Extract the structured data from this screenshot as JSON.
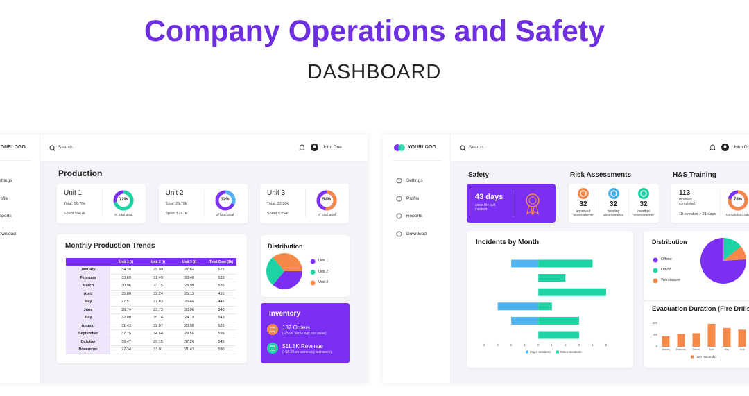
{
  "header": {
    "title": "Company Operations and Safety",
    "subtitle": "DASHBOARD"
  },
  "operations": {
    "logo": "YOURLOGO",
    "menu": [
      "Settings",
      "Profile",
      "Reports",
      "Download"
    ],
    "search": "Search...",
    "user": "John Doe",
    "production_title": "Production",
    "units": [
      {
        "name": "Unit 1",
        "total": "Total: 56.70k",
        "spent": "Spent $567k",
        "percent": 72,
        "percent_label": "72%",
        "caption": "of total goal",
        "color": "#1ed3a3"
      },
      {
        "name": "Unit 2",
        "total": "Total: 26.70k",
        "spent": "Spent $267k",
        "percent": 32,
        "percent_label": "32%",
        "caption": "of total goal",
        "color": "#4db4f0"
      },
      {
        "name": "Unit 3",
        "total": "Total: 32.90k",
        "spent": "Spent $354k",
        "percent": 52,
        "percent_label": "52%",
        "caption": "of total goal",
        "color": "#f5894a"
      }
    ],
    "trends": {
      "title": "Monthly Production Trends",
      "columns": [
        "Unit 1 (t)",
        "Unit 2 (t)",
        "Unit 3 (t)",
        "Total Cost ($k)"
      ],
      "rows": [
        [
          "January",
          "34.38",
          "25.99",
          "27.64",
          "525"
        ],
        [
          "February",
          "33.69",
          "31.49",
          "33.40",
          "533"
        ],
        [
          "March",
          "30.96",
          "33.15",
          "28.99",
          "535"
        ],
        [
          "April",
          "35.80",
          "32.24",
          "25.13",
          "491"
        ],
        [
          "May",
          "27.51",
          "37.83",
          "25.44",
          "446"
        ],
        [
          "June",
          "28.74",
          "23.73",
          "30.06",
          "340"
        ],
        [
          "July",
          "32.08",
          "35.74",
          "24.19",
          "543"
        ],
        [
          "August",
          "31.43",
          "32.07",
          "20.98",
          "526"
        ],
        [
          "September",
          "37.75",
          "34.64",
          "29.56",
          "596"
        ],
        [
          "October",
          "39.47",
          "29.15",
          "37.26",
          "545"
        ],
        [
          "November",
          "27.34",
          "23.01",
          "21.43",
          "590"
        ]
      ]
    },
    "distribution": {
      "type": "pie",
      "title": "Distribution",
      "categories": [
        "Unit 1",
        "Unit 2",
        "Unit 3"
      ],
      "values": [
        36,
        28,
        36
      ],
      "colors": [
        "#7a2ff2",
        "#1ed3a3",
        "#f5894a"
      ]
    },
    "inventory": {
      "title": "Inventory",
      "items": [
        {
          "headline": "137 Orders",
          "note": "(-25 vs. same day last week)",
          "color": "#f5894a"
        },
        {
          "headline": "$11.8K Revenue",
          "note": "(+$6.6K vs same day last week)",
          "color": "#1ed3a3"
        }
      ]
    }
  },
  "safety": {
    "logo": "YOURLOGO",
    "menu": [
      "Settings",
      "Profile",
      "Reports",
      "Download"
    ],
    "search": "Search...",
    "user": "John Doe",
    "safety_card": {
      "title": "Safety",
      "days": "43 days",
      "note": "since the last incident"
    },
    "risk": {
      "title": "Risk Assessments",
      "items": [
        {
          "count": "32",
          "label": "approved assessments",
          "color": "#f5894a"
        },
        {
          "count": "32",
          "label": "pending assessments",
          "color": "#4db4f0"
        },
        {
          "count": "32",
          "label": "overdue assessments",
          "color": "#1ed3a3"
        }
      ]
    },
    "training": {
      "title": "H&S Training",
      "modules": "113",
      "modules_label": "modules completed",
      "overdue": "18 overdue > 21 days",
      "percent": 78,
      "percent_label": "78%",
      "caption": "completion rate",
      "color": "#f5894a"
    },
    "incidents": {
      "type": "bar",
      "orientation": "horizontal",
      "title": "Incidents by Month",
      "categories": [
        null,
        null,
        null,
        null,
        null,
        null
      ],
      "series": [
        {
          "name": "Major Incidents",
          "color": "#4db4f0",
          "values": [
            -2,
            0,
            0,
            -3,
            -2,
            0
          ]
        },
        {
          "name": "Minor Incidents",
          "color": "#1ed3a3",
          "values": [
            4,
            2,
            5,
            1,
            3,
            3
          ]
        }
      ],
      "xlim": [
        -4,
        5
      ],
      "xticks": [
        {
          "value": -4,
          "label": "4"
        },
        {
          "value": -3,
          "label": "3"
        },
        {
          "value": -2,
          "label": "2"
        },
        {
          "value": -1,
          "label": "1"
        },
        0,
        1,
        2,
        3,
        4,
        5
      ]
    },
    "distribution": {
      "type": "pie",
      "title": "Distribution",
      "categories": [
        "Offsite",
        "Office",
        "Warehouse"
      ],
      "values": [
        76,
        14,
        10
      ],
      "colors": [
        "#7a2ff2",
        "#1ed3a3",
        "#f5894a"
      ]
    },
    "evacuation": {
      "type": "bar",
      "title": "Evacuation Duration (Fire Drills)",
      "categories": [
        "January",
        "February",
        "March",
        "April",
        "May",
        "June"
      ],
      "series": [
        {
          "name": "Time (seconds)",
          "color": "#f5894a",
          "values": [
            90,
            110,
            115,
            195,
            160,
            145
          ]
        }
      ],
      "ylim": [
        0,
        200
      ],
      "yticks": [
        0,
        100,
        200
      ]
    }
  }
}
